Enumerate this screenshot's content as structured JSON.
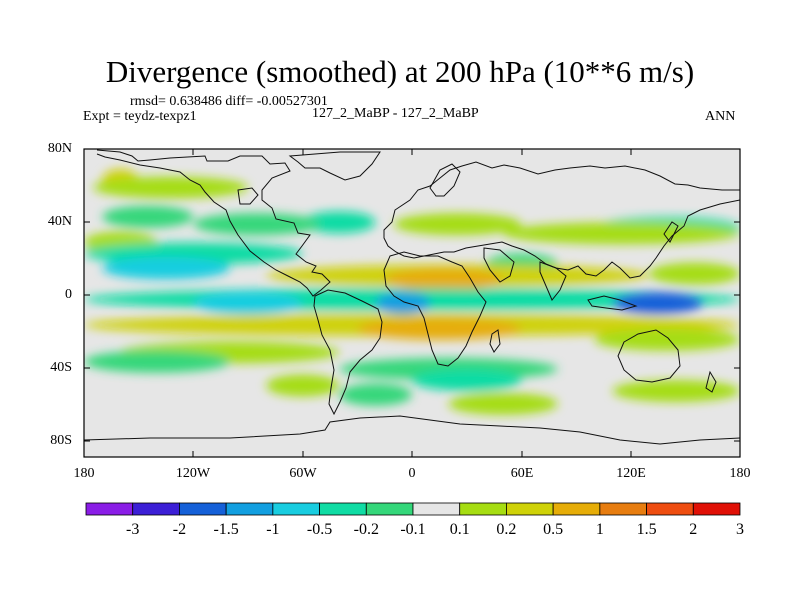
{
  "title": "Divergence (smoothed) at 200 hPa (10**6 m/s)",
  "stats": "rmsd= 0.638486 diff= -0.00527301",
  "expt": "Expt = teydz-texpz1",
  "cases": "127_2_MaBP - 127_2_MaBP",
  "season": "ANN",
  "y_ticks": [
    "80N",
    "40N",
    "0",
    "40S",
    "80S"
  ],
  "x_ticks": [
    "180",
    "120W",
    "60W",
    "0",
    "60E",
    "120E",
    "180"
  ],
  "colorbar": {
    "labels": [
      "-3",
      "-2",
      "-1.5",
      "-1",
      "-0.5",
      "-0.2",
      "-0.1",
      "0.1",
      "0.2",
      "0.5",
      "1",
      "1.5",
      "2",
      "3"
    ],
    "colors": [
      "#8a1de6",
      "#3c1fd6",
      "#1560d8",
      "#129fe0",
      "#19cde0",
      "#10dca4",
      "#34d77a",
      "#e6e6e6",
      "#a6dd12",
      "#cfd208",
      "#e6ad08",
      "#e77d10",
      "#ee4d10",
      "#e01006"
    ]
  },
  "bands": [
    {
      "lat": 67,
      "lon": [
        -170,
        -150
      ],
      "level": 2
    },
    {
      "lat": 63,
      "lon": [
        -175,
        -90
      ],
      "level": 1
    },
    {
      "lat": 47,
      "lon": [
        -170,
        -120
      ],
      "level": -1
    },
    {
      "lat": 44,
      "lon": [
        -60,
        -20
      ],
      "level": -2
    },
    {
      "lat": 43,
      "lon": [
        -120,
        -50
      ],
      "level": -1
    },
    {
      "lat": 43,
      "lon": [
        -10,
        60
      ],
      "level": 1
    },
    {
      "lat": 41,
      "lon": [
        100,
        180
      ],
      "level": -2
    },
    {
      "lat": 38,
      "lon": [
        50,
        180
      ],
      "level": 1
    },
    {
      "lat": 33,
      "lon": [
        -180,
        -140
      ],
      "level": 1
    },
    {
      "lat": 27,
      "lon": [
        -180,
        -60
      ],
      "level": -2
    },
    {
      "lat": 19,
      "lon": [
        -170,
        -100
      ],
      "level": -3
    },
    {
      "lat": 21,
      "lon": [
        40,
        80
      ],
      "level": -1
    },
    {
      "lat": 15,
      "lon": [
        -80,
        130
      ],
      "level": 2
    },
    {
      "lat": 13,
      "lon": [
        -15,
        50
      ],
      "level": 3
    },
    {
      "lat": 16,
      "lon": [
        130,
        180
      ],
      "level": 1
    },
    {
      "lat": 2,
      "lon": [
        -180,
        180
      ],
      "level": -2
    },
    {
      "lat": 0,
      "lon": [
        -20,
        10
      ],
      "level": -4
    },
    {
      "lat": 0,
      "lon": [
        -120,
        -60
      ],
      "level": -3
    },
    {
      "lat": 0,
      "lon": [
        110,
        160
      ],
      "level": -5
    },
    {
      "lat": -12,
      "lon": [
        -180,
        180
      ],
      "level": 2
    },
    {
      "lat": -14,
      "lon": [
        -30,
        60
      ],
      "level": 3
    },
    {
      "lat": -20,
      "lon": [
        100,
        180
      ],
      "level": 1
    },
    {
      "lat": -27,
      "lon": [
        -160,
        -40
      ],
      "level": 1
    },
    {
      "lat": -32,
      "lon": [
        -180,
        -100
      ],
      "level": -1
    },
    {
      "lat": -36,
      "lon": [
        -40,
        80
      ],
      "level": -1
    },
    {
      "lat": -42,
      "lon": [
        0,
        60
      ],
      "level": -2
    },
    {
      "lat": -45,
      "lon": [
        -80,
        -40
      ],
      "level": 1
    },
    {
      "lat": -50,
      "lon": [
        -40,
        0
      ],
      "level": -1
    },
    {
      "lat": -55,
      "lon": [
        20,
        80
      ],
      "level": 1
    },
    {
      "lat": -48,
      "lon": [
        110,
        180
      ],
      "level": 1
    }
  ]
}
